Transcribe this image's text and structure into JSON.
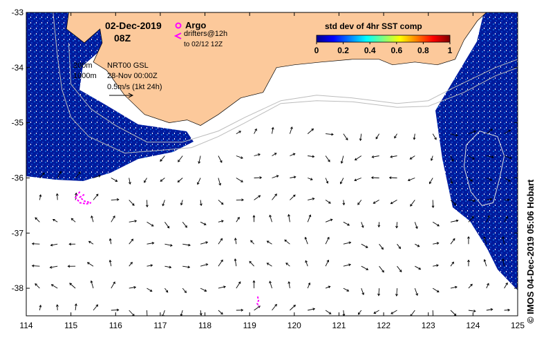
{
  "header": {
    "date": "02-Dec-2019",
    "hour": "08Z"
  },
  "legend": {
    "argo_label": "Argo",
    "drifters_label": "drifters@12h",
    "drifters_period": "to 02/12 12Z",
    "isobath_shallow": "200m",
    "isobath_deep": "1000m",
    "product": "NRT00 GSL",
    "product_date": "28-Nov 00:00Z",
    "vector_scale": "0.5m/s (1kt 24h)"
  },
  "colorbar": {
    "title": "std dev of 4hr SST comp",
    "ticks": [
      "0",
      "0.2",
      "0.4",
      "0.6",
      "0.8",
      "1"
    ]
  },
  "credit": "© IMOS 04-Dec-2019 05:06 Hobart",
  "colors": {
    "land": "#fcc99b",
    "ocean_data": "#001a9c",
    "drifter": "#ff00ff",
    "background": "#ffffff"
  },
  "chart_data": {
    "type": "map",
    "xlim": [
      114,
      125
    ],
    "ylim": [
      -38.5,
      -33
    ],
    "xticks": [
      "114",
      "115",
      "116",
      "117",
      "118",
      "119",
      "120",
      "121",
      "122",
      "123",
      "124",
      "125"
    ],
    "yticks": [
      "-33",
      "-34",
      "-35",
      "-36",
      "-37",
      "-38"
    ],
    "coast": [
      [
        114.95,
        -33
      ],
      [
        114.9,
        -33.3
      ],
      [
        115.3,
        -33.55
      ],
      [
        115.65,
        -33.3
      ],
      [
        115.7,
        -33.55
      ],
      [
        115.5,
        -33.9
      ],
      [
        115.8,
        -34.05
      ],
      [
        116.2,
        -34.5
      ],
      [
        116.65,
        -34.85
      ],
      [
        117.2,
        -35.0
      ],
      [
        117.6,
        -34.95
      ],
      [
        117.9,
        -35.05
      ],
      [
        118.3,
        -34.85
      ],
      [
        118.8,
        -34.55
      ],
      [
        119.3,
        -34.45
      ],
      [
        119.6,
        -34.0
      ],
      [
        120.0,
        -33.95
      ],
      [
        120.6,
        -33.9
      ],
      [
        121.3,
        -33.85
      ],
      [
        121.9,
        -33.85
      ],
      [
        122.2,
        -33.95
      ],
      [
        122.7,
        -33.9
      ],
      [
        123.2,
        -33.95
      ],
      [
        123.6,
        -33.85
      ],
      [
        123.8,
        -33.5
      ],
      [
        124.1,
        -33.15
      ],
      [
        124.3,
        -33
      ]
    ],
    "isobath_200": [
      [
        114.95,
        -33.55
      ],
      [
        115.0,
        -34.3
      ],
      [
        115.45,
        -34.75
      ],
      [
        116.0,
        -35.05
      ],
      [
        116.7,
        -35.35
      ],
      [
        117.5,
        -35.35
      ],
      [
        118.3,
        -35.15
      ],
      [
        118.9,
        -34.9
      ],
      [
        119.7,
        -34.6
      ],
      [
        120.5,
        -34.5
      ],
      [
        121.3,
        -34.55
      ],
      [
        122.3,
        -34.65
      ],
      [
        123.0,
        -34.6
      ],
      [
        123.6,
        -34.35
      ],
      [
        124.5,
        -34.0
      ],
      [
        125,
        -33.85
      ]
    ],
    "isobath_1000": [
      [
        114.6,
        -33.0
      ],
      [
        114.7,
        -33.8
      ],
      [
        114.8,
        -34.4
      ],
      [
        115.0,
        -34.9
      ],
      [
        115.4,
        -35.25
      ],
      [
        116.2,
        -35.55
      ],
      [
        117.0,
        -35.5
      ],
      [
        117.7,
        -35.45
      ],
      [
        118.3,
        -35.25
      ],
      [
        118.9,
        -35.0
      ],
      [
        119.7,
        -34.65
      ],
      [
        120.5,
        -34.6
      ],
      [
        121.3,
        -34.62
      ],
      [
        122.3,
        -34.72
      ],
      [
        123.0,
        -34.7
      ],
      [
        123.8,
        -34.45
      ],
      [
        124.5,
        -34.15
      ],
      [
        125,
        -34.0
      ]
    ],
    "eddy_contour": [
      [
        124.15,
        -35.15
      ],
      [
        124.55,
        -35.25
      ],
      [
        124.7,
        -35.6
      ],
      [
        124.6,
        -36.0
      ],
      [
        124.45,
        -36.45
      ],
      [
        124.2,
        -36.5
      ],
      [
        123.95,
        -36.25
      ],
      [
        123.8,
        -35.8
      ],
      [
        123.85,
        -35.4
      ]
    ],
    "drifter_tracks": [
      [
        [
          115.2,
          -36.25
        ],
        [
          115.1,
          -36.35
        ],
        [
          115.2,
          -36.45
        ],
        [
          115.35,
          -36.47
        ],
        [
          115.45,
          -36.45
        ],
        [
          115.3,
          -36.42
        ],
        [
          115.2,
          -36.35
        ],
        [
          115.3,
          -36.3
        ]
      ],
      [
        [
          119.18,
          -38.15
        ],
        [
          119.2,
          -38.22
        ],
        [
          119.17,
          -38.28
        ],
        [
          119.22,
          -38.33
        ]
      ]
    ]
  }
}
